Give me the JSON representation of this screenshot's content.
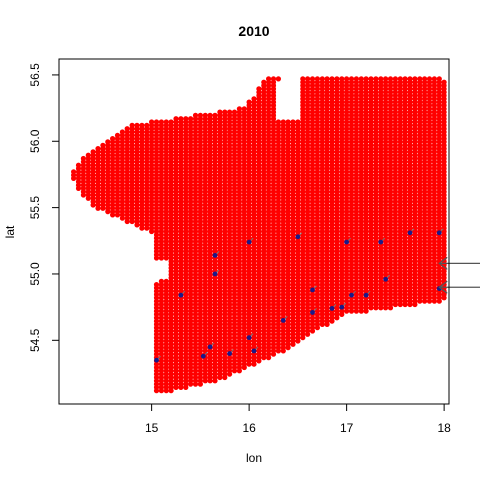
{
  "chart_data": {
    "type": "scatter",
    "title": "2010",
    "xlabel": "lon",
    "ylabel": "lat",
    "xlim": [
      14.05,
      18.05
    ],
    "ylim": [
      54.02,
      56.62
    ],
    "x_ticks": [
      15,
      16,
      17,
      18
    ],
    "y_ticks": [
      54.5,
      55.0,
      55.5,
      56.0,
      56.5
    ],
    "y_tick_labels": [
      "54.5",
      "55.0",
      "55.5",
      "56.0",
      "56.5"
    ],
    "grid": false,
    "marker_color": "#ff0000",
    "highlight_color": "#1a1a8a",
    "grid_step": {
      "lon": 0.05,
      "lat": 0.025
    },
    "rows": [
      {
        "lat": 54.12,
        "lon_min": 15.05,
        "lon_max": 15.2
      },
      {
        "lat": 54.2,
        "lon_min": 15.05,
        "lon_max": 15.7
      },
      {
        "lat": 54.3,
        "lon_min": 15.05,
        "lon_max": 16.0
      },
      {
        "lat": 54.4,
        "lon_min": 15.05,
        "lon_max": 16.3
      },
      {
        "lat": 54.5,
        "lon_min": 15.05,
        "lon_max": 16.55
      },
      {
        "lat": 54.6,
        "lon_min": 15.05,
        "lon_max": 16.75
      },
      {
        "lat": 54.7,
        "lon_min": 15.05,
        "lon_max": 17.0
      },
      {
        "lat": 54.8,
        "lon_min": 15.05,
        "lon_max": 18.0
      },
      {
        "lat": 54.9,
        "lon_min": 15.05,
        "lon_max": 18.0
      },
      {
        "lat": 55.0,
        "lon_min": 15.15,
        "lon_max": 18.0
      },
      {
        "lat": 55.15,
        "lon_min": 15.05,
        "lon_max": 18.0
      },
      {
        "lat": 55.3,
        "lon_min": 15.05,
        "lon_max": 18.0
      },
      {
        "lat": 55.5,
        "lon_min": 14.45,
        "lon_max": 18.0
      },
      {
        "lat": 55.6,
        "lon_min": 14.3,
        "lon_max": 18.0
      },
      {
        "lat": 55.75,
        "lon_min": 14.2,
        "lon_max": 18.0
      },
      {
        "lat": 55.9,
        "lon_min": 14.35,
        "lon_max": 18.0
      },
      {
        "lat": 56.0,
        "lon_min": 14.55,
        "lon_max": 18.0
      },
      {
        "lat": 56.12,
        "lon_min": 14.8,
        "lon_max": 18.0
      },
      {
        "lat": 56.25,
        "lon_min": 15.95,
        "lon_max": 18.0
      },
      {
        "lat": 56.35,
        "lon_min": 16.1,
        "lon_max": 18.0
      },
      {
        "lat": 56.45,
        "lon_min": 16.15,
        "lon_max": 18.0
      },
      {
        "lat": 56.48,
        "lon_min": 16.2,
        "lon_max": 17.95
      }
    ],
    "highlight_points": [
      {
        "lon": 15.05,
        "lat": 54.35
      },
      {
        "lon": 15.3,
        "lat": 54.84
      },
      {
        "lon": 15.53,
        "lat": 54.38
      },
      {
        "lon": 15.6,
        "lat": 54.45
      },
      {
        "lon": 15.65,
        "lat": 55.0
      },
      {
        "lon": 15.65,
        "lat": 55.14
      },
      {
        "lon": 15.8,
        "lat": 54.4
      },
      {
        "lon": 16.0,
        "lat": 54.52
      },
      {
        "lon": 16.0,
        "lat": 55.24
      },
      {
        "lon": 16.05,
        "lat": 54.42
      },
      {
        "lon": 16.35,
        "lat": 54.65
      },
      {
        "lon": 16.5,
        "lat": 55.28
      },
      {
        "lon": 16.65,
        "lat": 54.71
      },
      {
        "lon": 16.65,
        "lat": 54.88
      },
      {
        "lon": 16.85,
        "lat": 54.74
      },
      {
        "lon": 16.95,
        "lat": 54.75
      },
      {
        "lon": 17.0,
        "lat": 55.24
      },
      {
        "lon": 17.05,
        "lat": 54.84
      },
      {
        "lon": 17.2,
        "lat": 54.84
      },
      {
        "lon": 17.35,
        "lat": 55.24
      },
      {
        "lon": 17.4,
        "lat": 54.96
      },
      {
        "lon": 17.65,
        "lat": 55.31
      },
      {
        "lon": 17.95,
        "lat": 54.89
      },
      {
        "lon": 17.95,
        "lat": 55.31
      }
    ],
    "arrows": [
      {
        "lon": 17.95,
        "lat": 55.08
      },
      {
        "lon": 17.95,
        "lat": 54.9
      }
    ]
  }
}
